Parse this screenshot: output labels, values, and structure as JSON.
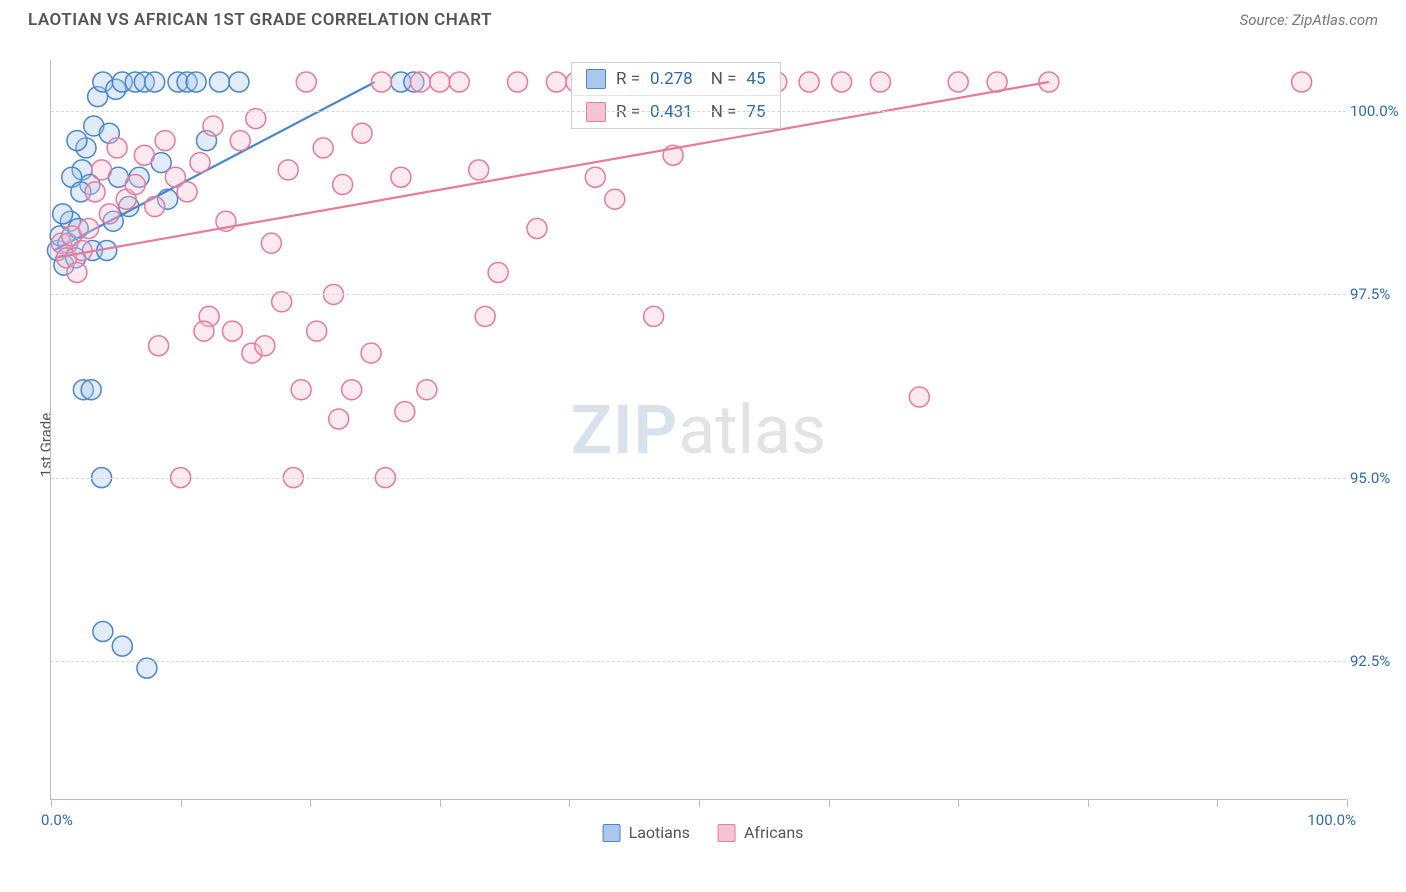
{
  "header": {
    "title": "LAOTIAN VS AFRICAN 1ST GRADE CORRELATION CHART",
    "source": "Source: ZipAtlas.com"
  },
  "chart": {
    "type": "scatter",
    "ylabel": "1st Grade",
    "xlim": [
      0,
      100
    ],
    "ylim": [
      90.6,
      100.7
    ],
    "x_ticks": [
      0,
      10,
      20,
      30,
      40,
      50,
      60,
      70,
      80,
      90,
      100
    ],
    "y_gridlines": [
      92.5,
      95.0,
      97.5,
      100.0
    ],
    "x_axis_label_min": "0.0%",
    "x_axis_label_max": "100.0%",
    "y_tick_format_suffix": "%",
    "background_color": "#ffffff",
    "grid_color": "#d8d8d8",
    "axis_color": "#bbbbbb",
    "marker_radius": 10,
    "marker_fill_opacity": 0.35,
    "marker_stroke_width": 1.5,
    "line_width": 2.2,
    "watermark": {
      "zip": "ZIP",
      "atlas": "atlas"
    },
    "series": [
      {
        "name": "Laotians",
        "color_stroke": "#4a86d0",
        "color_fill": "#a9c8ea",
        "stats": {
          "R": "0.278",
          "N": "45"
        },
        "trend_line": {
          "x1": 0.2,
          "y1": 98.1,
          "x2": 25.0,
          "y2": 100.4
        },
        "points": [
          [
            0.5,
            98.1
          ],
          [
            0.7,
            98.3
          ],
          [
            1.0,
            97.9
          ],
          [
            1.3,
            98.2
          ],
          [
            1.5,
            98.5
          ],
          [
            1.9,
            98.0
          ],
          [
            2.1,
            98.4
          ],
          [
            2.4,
            99.2
          ],
          [
            2.7,
            99.5
          ],
          [
            3.0,
            99.0
          ],
          [
            3.3,
            99.8
          ],
          [
            3.6,
            100.2
          ],
          [
            4.0,
            100.4
          ],
          [
            4.5,
            99.7
          ],
          [
            5.0,
            100.3
          ],
          [
            5.5,
            100.4
          ],
          [
            6.0,
            98.7
          ],
          [
            6.5,
            100.4
          ],
          [
            7.2,
            100.4
          ],
          [
            8.0,
            100.4
          ],
          [
            8.5,
            99.3
          ],
          [
            9.0,
            98.8
          ],
          [
            9.8,
            100.4
          ],
          [
            10.5,
            100.4
          ],
          [
            11.2,
            100.4
          ],
          [
            12.0,
            99.6
          ],
          [
            13.0,
            100.4
          ],
          [
            14.5,
            100.4
          ],
          [
            27.0,
            100.4
          ],
          [
            28.0,
            100.4
          ],
          [
            3.2,
            98.1
          ],
          [
            4.3,
            98.1
          ],
          [
            6.8,
            99.1
          ],
          [
            2.5,
            96.2
          ],
          [
            3.1,
            96.2
          ],
          [
            3.9,
            95.0
          ],
          [
            4.0,
            92.9
          ],
          [
            5.5,
            92.7
          ],
          [
            7.4,
            92.4
          ],
          [
            0.9,
            98.6
          ],
          [
            1.6,
            99.1
          ],
          [
            2.0,
            99.6
          ],
          [
            2.3,
            98.9
          ],
          [
            5.2,
            99.1
          ],
          [
            4.8,
            98.5
          ]
        ]
      },
      {
        "name": "Africans",
        "color_stroke": "#e67a9b",
        "color_fill": "#f6c3d3",
        "stats": {
          "R": "0.431",
          "N": "75"
        },
        "trend_line": {
          "x1": 0.3,
          "y1": 98.0,
          "x2": 77.0,
          "y2": 100.4
        },
        "points": [
          [
            0.8,
            98.2
          ],
          [
            1.2,
            98.0
          ],
          [
            1.6,
            98.3
          ],
          [
            2.0,
            97.8
          ],
          [
            2.4,
            98.1
          ],
          [
            2.9,
            98.4
          ],
          [
            3.4,
            98.9
          ],
          [
            3.9,
            99.2
          ],
          [
            4.5,
            98.6
          ],
          [
            5.1,
            99.5
          ],
          [
            5.8,
            98.8
          ],
          [
            6.5,
            99.0
          ],
          [
            7.2,
            99.4
          ],
          [
            8.0,
            98.7
          ],
          [
            8.8,
            99.6
          ],
          [
            9.6,
            99.1
          ],
          [
            10.5,
            98.9
          ],
          [
            11.5,
            99.3
          ],
          [
            12.5,
            99.8
          ],
          [
            13.5,
            98.5
          ],
          [
            14.6,
            99.6
          ],
          [
            15.8,
            99.9
          ],
          [
            17.0,
            98.2
          ],
          [
            18.3,
            99.2
          ],
          [
            19.7,
            100.4
          ],
          [
            21.0,
            99.5
          ],
          [
            22.5,
            99.0
          ],
          [
            24.0,
            99.7
          ],
          [
            25.5,
            100.4
          ],
          [
            27.0,
            99.1
          ],
          [
            28.5,
            100.4
          ],
          [
            30.0,
            100.4
          ],
          [
            31.5,
            100.4
          ],
          [
            33.0,
            99.2
          ],
          [
            34.5,
            97.8
          ],
          [
            36.0,
            100.4
          ],
          [
            37.5,
            98.4
          ],
          [
            39.0,
            100.4
          ],
          [
            40.5,
            100.4
          ],
          [
            42.0,
            99.1
          ],
          [
            43.5,
            98.8
          ],
          [
            45.0,
            100.4
          ],
          [
            46.5,
            97.2
          ],
          [
            48.0,
            99.4
          ],
          [
            50.0,
            100.4
          ],
          [
            52.0,
            100.4
          ],
          [
            54.0,
            100.4
          ],
          [
            56.0,
            100.4
          ],
          [
            58.5,
            100.4
          ],
          [
            61.0,
            100.4
          ],
          [
            64.0,
            100.4
          ],
          [
            67.0,
            96.1
          ],
          [
            70.0,
            100.4
          ],
          [
            73.0,
            100.4
          ],
          [
            77.0,
            100.4
          ],
          [
            96.5,
            100.4
          ],
          [
            12.2,
            97.2
          ],
          [
            14.0,
            97.0
          ],
          [
            15.5,
            96.7
          ],
          [
            17.8,
            97.4
          ],
          [
            19.3,
            96.2
          ],
          [
            21.8,
            97.5
          ],
          [
            23.2,
            96.2
          ],
          [
            25.8,
            95.0
          ],
          [
            27.3,
            95.9
          ],
          [
            29.0,
            96.2
          ],
          [
            16.5,
            96.8
          ],
          [
            20.5,
            97.0
          ],
          [
            8.3,
            96.8
          ],
          [
            10.0,
            95.0
          ],
          [
            11.8,
            97.0
          ],
          [
            18.7,
            95.0
          ],
          [
            22.2,
            95.8
          ],
          [
            33.5,
            97.2
          ],
          [
            24.7,
            96.7
          ]
        ]
      }
    ],
    "bottom_legend": [
      "Laotians",
      "Africans"
    ]
  }
}
